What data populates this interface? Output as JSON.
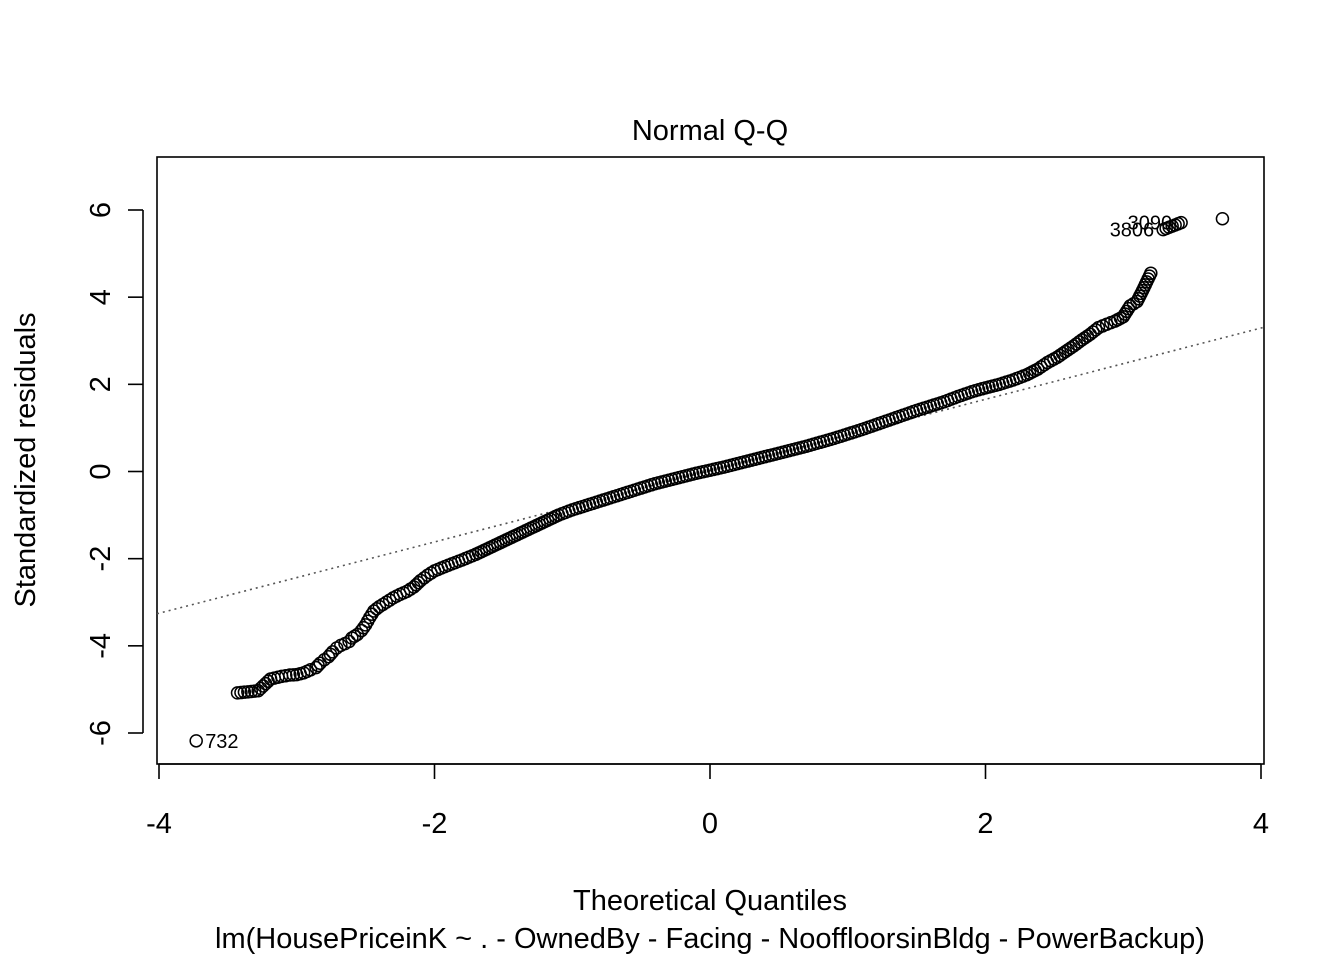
{
  "chart_data": {
    "type": "scatter",
    "title": "Normal Q-Q",
    "xlabel": "Theoretical Quantiles",
    "ylabel": "Standardized residuals",
    "subtitle": "lm(HousePriceinK ~ . - OwnedBy - Facing - NooffloorsinBldg - PowerBackup)",
    "xlim": [
      -4,
      4
    ],
    "ylim": [
      -6.5,
      6.5
    ],
    "xticks": [
      -4,
      -2,
      0,
      2,
      4
    ],
    "yticks": [
      -6,
      -4,
      -2,
      0,
      2,
      4,
      6
    ],
    "xtick_labels": [
      "-4",
      "-2",
      "0",
      "2",
      "4"
    ],
    "ytick_labels": [
      "-6",
      "-4",
      "-2",
      "0",
      "2",
      "4",
      "6"
    ],
    "reference_line": {
      "slope": 0.818,
      "intercept": 0.02,
      "style": "dotted",
      "color": "#555555"
    },
    "grid": false,
    "marker": "open-circle",
    "points": [
      [
        -3.73,
        -6.18
      ],
      [
        -3.43,
        -5.08
      ],
      [
        -3.28,
        -5.03
      ],
      [
        -3.19,
        -4.76
      ],
      [
        -3.11,
        -4.7
      ],
      [
        -3.05,
        -4.67
      ],
      [
        -3.0,
        -4.66
      ],
      [
        -2.95,
        -4.62
      ],
      [
        -2.9,
        -4.55
      ],
      [
        -2.86,
        -4.5
      ],
      [
        -2.83,
        -4.4
      ],
      [
        -2.8,
        -4.32
      ],
      [
        -2.77,
        -4.25
      ],
      [
        -2.74,
        -4.14
      ],
      [
        -2.71,
        -4.05
      ],
      [
        -2.68,
        -3.99
      ],
      [
        -2.65,
        -3.95
      ],
      [
        -2.62,
        -3.9
      ],
      [
        -2.6,
        -3.82
      ],
      [
        -2.56,
        -3.74
      ],
      [
        -2.53,
        -3.65
      ],
      [
        -2.5,
        -3.52
      ],
      [
        -2.47,
        -3.35
      ],
      [
        -2.44,
        -3.2
      ],
      [
        -2.4,
        -3.1
      ],
      [
        -2.35,
        -3.0
      ],
      [
        -2.3,
        -2.9
      ],
      [
        -2.25,
        -2.82
      ],
      [
        -2.2,
        -2.75
      ],
      [
        -2.15,
        -2.65
      ],
      [
        -2.1,
        -2.5
      ],
      [
        -2.05,
        -2.38
      ],
      [
        -2.0,
        -2.28
      ],
      [
        -1.9,
        -2.15
      ],
      [
        -1.8,
        -2.03
      ],
      [
        -1.7,
        -1.9
      ],
      [
        -1.6,
        -1.75
      ],
      [
        -1.5,
        -1.6
      ],
      [
        -1.4,
        -1.45
      ],
      [
        -1.3,
        -1.3
      ],
      [
        -1.2,
        -1.15
      ],
      [
        -1.1,
        -1.0
      ],
      [
        -1.0,
        -0.88
      ],
      [
        -0.9,
        -0.78
      ],
      [
        -0.8,
        -0.68
      ],
      [
        -0.7,
        -0.58
      ],
      [
        -0.6,
        -0.48
      ],
      [
        -0.5,
        -0.38
      ],
      [
        -0.4,
        -0.28
      ],
      [
        -0.3,
        -0.2
      ],
      [
        -0.2,
        -0.12
      ],
      [
        -0.1,
        -0.04
      ],
      [
        0.0,
        0.03
      ],
      [
        0.1,
        0.1
      ],
      [
        0.2,
        0.18
      ],
      [
        0.3,
        0.26
      ],
      [
        0.4,
        0.34
      ],
      [
        0.5,
        0.42
      ],
      [
        0.6,
        0.5
      ],
      [
        0.7,
        0.58
      ],
      [
        0.8,
        0.67
      ],
      [
        0.9,
        0.76
      ],
      [
        1.0,
        0.86
      ],
      [
        1.1,
        0.96
      ],
      [
        1.2,
        1.07
      ],
      [
        1.3,
        1.18
      ],
      [
        1.4,
        1.29
      ],
      [
        1.5,
        1.4
      ],
      [
        1.6,
        1.5
      ],
      [
        1.7,
        1.6
      ],
      [
        1.8,
        1.72
      ],
      [
        1.9,
        1.83
      ],
      [
        2.0,
        1.92
      ],
      [
        2.1,
        2.0
      ],
      [
        2.2,
        2.1
      ],
      [
        2.3,
        2.22
      ],
      [
        2.38,
        2.35
      ],
      [
        2.45,
        2.5
      ],
      [
        2.52,
        2.62
      ],
      [
        2.58,
        2.75
      ],
      [
        2.64,
        2.88
      ],
      [
        2.7,
        3.02
      ],
      [
        2.76,
        3.15
      ],
      [
        2.82,
        3.3
      ],
      [
        2.88,
        3.38
      ],
      [
        2.94,
        3.45
      ],
      [
        3.0,
        3.55
      ],
      [
        3.05,
        3.8
      ],
      [
        3.1,
        3.9
      ],
      [
        3.14,
        4.15
      ],
      [
        3.2,
        4.55
      ],
      [
        3.29,
        5.55
      ],
      [
        3.42,
        5.71
      ],
      [
        3.72,
        5.8
      ]
    ],
    "point_labels": [
      {
        "text": "732",
        "x": -3.73,
        "y": -6.18,
        "side": "right"
      },
      {
        "text": "3806",
        "x": 3.29,
        "y": 5.55,
        "side": "left"
      },
      {
        "text": "3090",
        "x": 3.42,
        "y": 5.71,
        "side": "left"
      }
    ]
  }
}
